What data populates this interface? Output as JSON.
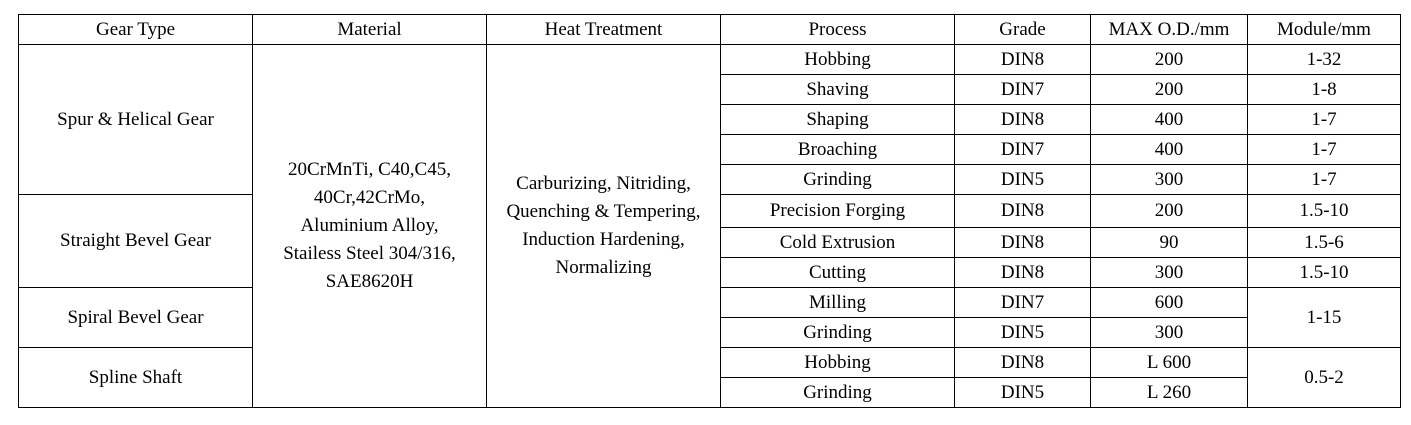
{
  "headers": [
    "Gear Type",
    "Material",
    "Heat Treatment",
    "Process",
    "Grade",
    "MAX O.D./mm",
    "Module/mm"
  ],
  "gear_types": [
    "Spur & Helical Gear",
    "Straight Bevel Gear",
    "Spiral Bevel Gear",
    "Spline Shaft"
  ],
  "material": "20CrMnTi, C40,C45,\n40Cr,42CrMo,\nAluminium Alloy,\nStailess Steel 304/316,\nSAE8620H",
  "heat_treatment": "Carburizing, Nitriding,\nQuenching & Tempering,\nInduction Hardening,\nNormalizing",
  "rows": [
    {
      "process": "Hobbing",
      "grade": "DIN8",
      "max_od": "200",
      "module": "1-32"
    },
    {
      "process": "Shaving",
      "grade": "DIN7",
      "max_od": "200",
      "module": "1-8"
    },
    {
      "process": "Shaping",
      "grade": "DIN8",
      "max_od": "400",
      "module": "1-7"
    },
    {
      "process": "Broaching",
      "grade": "DIN7",
      "max_od": "400",
      "module": "1-7"
    },
    {
      "process": "Grinding",
      "grade": "DIN5",
      "max_od": "300",
      "module": "1-7"
    },
    {
      "process": "Precision Forging",
      "grade": "DIN8",
      "max_od": "200",
      "module": "1.5-10"
    },
    {
      "process": "Cold Extrusion",
      "grade": "DIN8",
      "max_od": "90",
      "module": "1.5-6"
    },
    {
      "process": "Cutting",
      "grade": "DIN8",
      "max_od": "300",
      "module": "1.5-10"
    },
    {
      "process": "Milling",
      "grade": "DIN7",
      "max_od": "600",
      "module": "1-15"
    },
    {
      "process": "Grinding",
      "grade": "DIN5",
      "max_od": "300",
      "module": null
    },
    {
      "process": "Hobbing",
      "grade": "DIN8",
      "max_od": "L 600",
      "module": "0.5-2"
    },
    {
      "process": "Grinding",
      "grade": "DIN5",
      "max_od": "L 260",
      "module": null
    }
  ]
}
